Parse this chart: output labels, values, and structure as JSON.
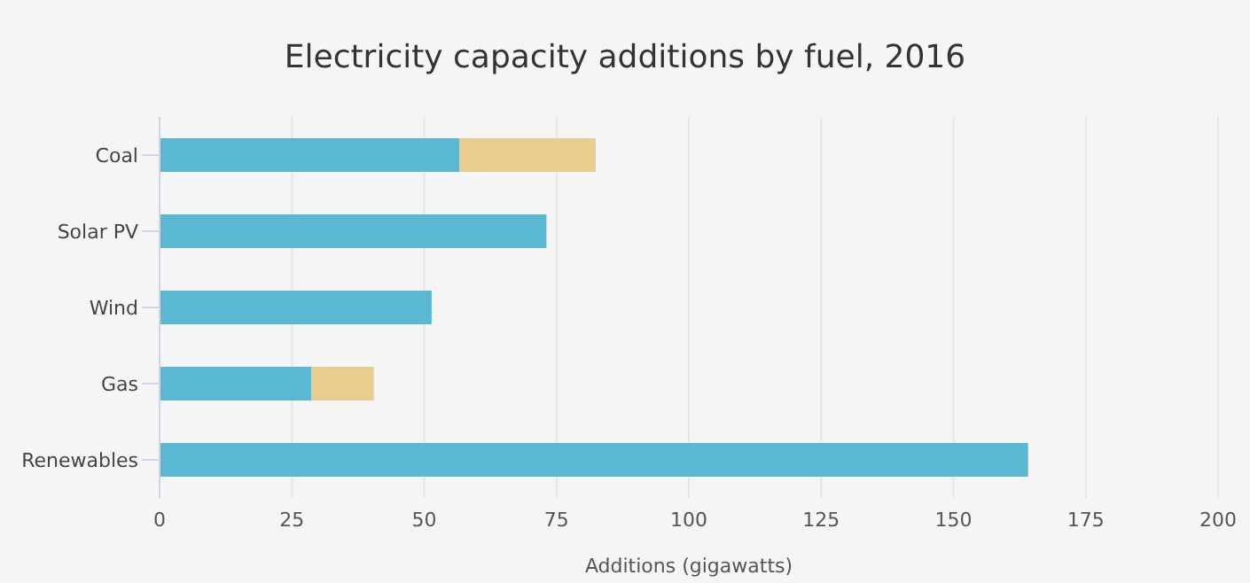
{
  "chart_data": {
    "type": "bar",
    "orientation": "horizontal",
    "stacked": true,
    "title": "Electricity capacity additions by fuel, 2016",
    "xlabel": "Additions (gigawatts)",
    "categories": [
      "Coal",
      "Solar PV",
      "Wind",
      "Gas",
      "Renewables"
    ],
    "series": [
      {
        "color": "#5bb8d2",
        "values": [
          56.7,
          73.1,
          51.4,
          28.7,
          164.1
        ]
      },
      {
        "color": "#e8cd90",
        "values": [
          25.7,
          null,
          null,
          11.8,
          null
        ]
      }
    ],
    "xlim": [
      0,
      200
    ],
    "xticks": [
      0,
      25,
      50,
      75,
      100,
      125,
      150,
      175,
      200
    ],
    "grid": "x",
    "legend": false
  }
}
